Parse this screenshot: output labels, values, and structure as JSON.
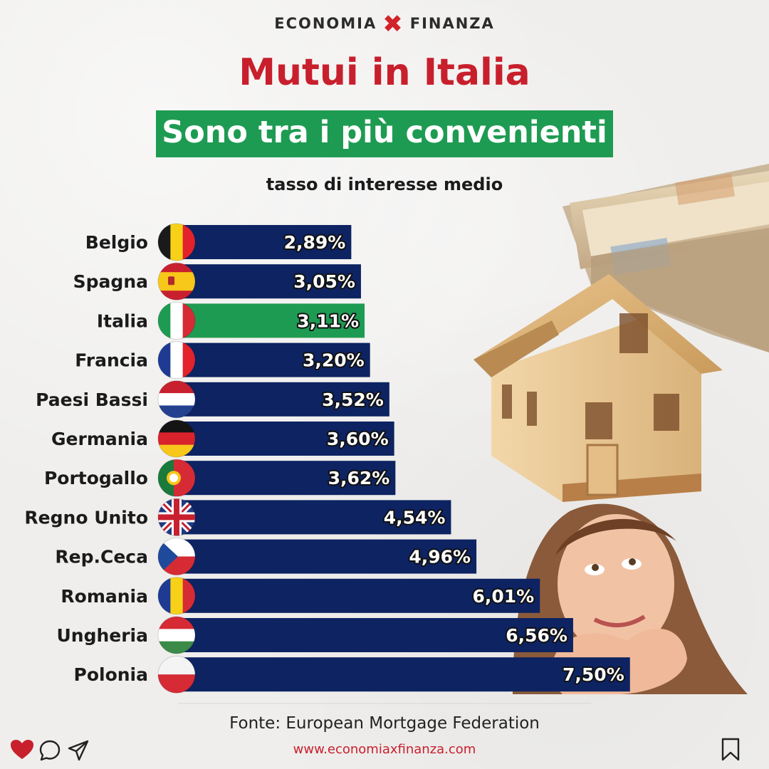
{
  "brand": {
    "left": "ECONOMIA",
    "mark": "✖",
    "right": "FINANZA"
  },
  "title": "Mutui in Italia",
  "subtitle": "Sono tra i più convenienti",
  "caption": "tasso di interesse medio",
  "source": "Fonte: European Mortgage Federation",
  "website": "www.economiaxfinanza.com",
  "colors": {
    "bar": "#0d2362",
    "highlight": "#1e9b52",
    "title": "#c81f2d",
    "brand_accent": "#d2232a"
  },
  "icons": [
    "heart-icon",
    "comment-icon",
    "send-icon",
    "bookmark-icon"
  ],
  "chart_data": {
    "type": "bar",
    "orientation": "horizontal",
    "categories": [
      "Belgio",
      "Spagna",
      "Italia",
      "Francia",
      "Paesi Bassi",
      "Germania",
      "Portogallo",
      "Regno Unito",
      "Rep.Ceca",
      "Romania",
      "Ungheria",
      "Polonia"
    ],
    "values": [
      2.89,
      3.05,
      3.11,
      3.2,
      3.52,
      3.6,
      3.62,
      4.54,
      4.96,
      6.01,
      6.56,
      7.5
    ],
    "labels": [
      "2,89%",
      "3,05%",
      "3,11%",
      "3,20%",
      "3,52%",
      "3,60%",
      "3,62%",
      "4,54%",
      "4,96%",
      "6,01%",
      "6,56%",
      "7,50%"
    ],
    "highlight": "Italia",
    "flags": [
      "belgium-flag",
      "spain-flag",
      "italy-flag",
      "france-flag",
      "netherlands-flag",
      "germany-flag",
      "portugal-flag",
      "uk-flag",
      "czech-flag",
      "romania-flag",
      "hungary-flag",
      "poland-flag"
    ],
    "unit": "%",
    "grid": false,
    "legend": "none"
  }
}
